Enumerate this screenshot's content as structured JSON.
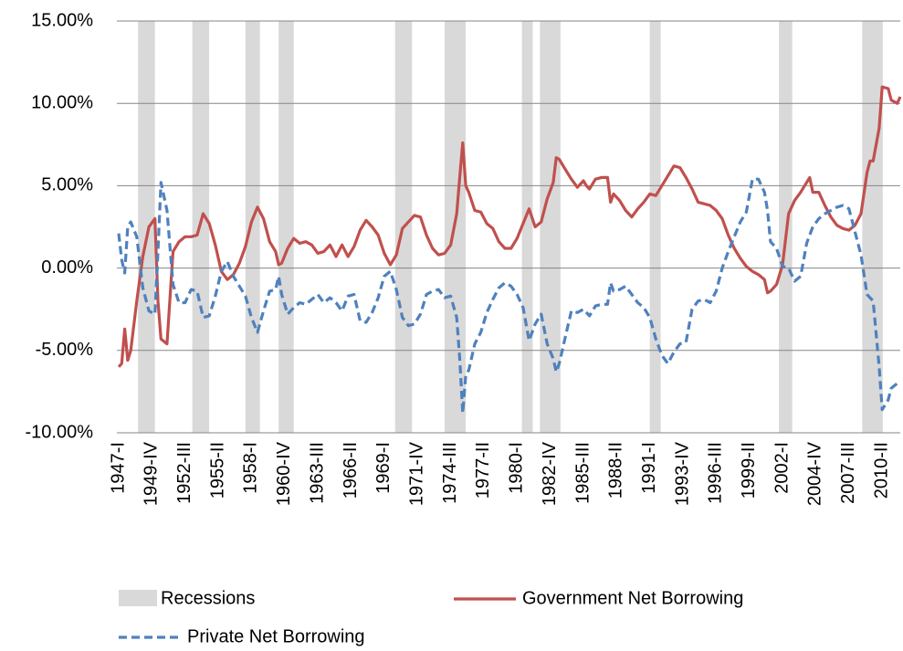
{
  "chart_data": {
    "type": "line",
    "x": [
      1947,
      1947.25,
      1947.5,
      1947.75,
      1948,
      1948.5,
      1949,
      1949.5,
      1950,
      1950.25,
      1950.5,
      1951,
      1951.5,
      1952,
      1952.5,
      1953,
      1953.5,
      1954,
      1954.5,
      1955,
      1955.5,
      1956,
      1956.5,
      1957,
      1957.5,
      1958,
      1958.5,
      1959,
      1959.5,
      1960,
      1960.25,
      1960.5,
      1961,
      1961.5,
      1962,
      1962.5,
      1963,
      1963.5,
      1964,
      1964.5,
      1965,
      1965.5,
      1966,
      1966.5,
      1967,
      1967.5,
      1968,
      1968.5,
      1969,
      1969.5,
      1970,
      1970.5,
      1971,
      1971.5,
      1972,
      1972.5,
      1973,
      1973.5,
      1974,
      1974.5,
      1975,
      1975.25,
      1975.5,
      1975.75,
      1976,
      1976.5,
      1977,
      1977.5,
      1978,
      1978.5,
      1979,
      1979.5,
      1980,
      1980.5,
      1981,
      1981.5,
      1982,
      1982.5,
      1983,
      1983.25,
      1983.5,
      1984,
      1984.5,
      1985,
      1985.5,
      1985.75,
      1986,
      1986.5,
      1987,
      1987.5,
      1987.75,
      1988,
      1988.5,
      1989,
      1989.5,
      1990,
      1990.5,
      1991,
      1991.5,
      1992,
      1992.5,
      1993,
      1993.5,
      1994,
      1994.5,
      1995,
      1995.5,
      1996,
      1996.5,
      1997,
      1997.5,
      1998,
      1998.5,
      1999,
      1999.5,
      2000,
      2000.5,
      2000.75,
      2001,
      2001.5,
      2002,
      2002.5,
      2003,
      2003.5,
      2004,
      2004.25,
      2004.5,
      2005,
      2005.5,
      2006,
      2006.5,
      2007,
      2007.5,
      2008,
      2008.5,
      2009,
      2009.25,
      2009.5,
      2010,
      2010.25,
      2010.75,
      2011,
      2011.5,
      2011.75
    ],
    "series": [
      {
        "name": "Government Net Borrowing",
        "color": "#c0504d",
        "dashed": false,
        "values": [
          -6.0,
          -5.8,
          -3.7,
          -5.6,
          -5.0,
          -2.0,
          0.7,
          2.5,
          3.0,
          -2.0,
          -4.3,
          -4.6,
          1.0,
          1.6,
          1.9,
          1.9,
          2.0,
          3.3,
          2.7,
          1.4,
          -0.2,
          -0.7,
          -0.4,
          0.3,
          1.3,
          2.8,
          3.7,
          3.0,
          1.6,
          1.0,
          0.2,
          0.3,
          1.2,
          1.8,
          1.5,
          1.6,
          1.4,
          0.9,
          1.0,
          1.4,
          0.7,
          1.4,
          0.7,
          1.3,
          2.3,
          2.9,
          2.5,
          2.0,
          0.9,
          0.2,
          0.8,
          2.4,
          2.8,
          3.2,
          3.1,
          2.0,
          1.2,
          0.8,
          0.9,
          1.4,
          3.3,
          5.5,
          7.6,
          5.0,
          4.6,
          3.5,
          3.4,
          2.7,
          2.4,
          1.6,
          1.2,
          1.2,
          1.8,
          2.7,
          3.6,
          2.5,
          2.8,
          4.2,
          5.2,
          6.7,
          6.6,
          6.0,
          5.4,
          4.9,
          5.3,
          5.0,
          4.8,
          5.4,
          5.5,
          5.5,
          4.0,
          4.5,
          4.1,
          3.5,
          3.1,
          3.6,
          4.0,
          4.5,
          4.4,
          5.0,
          5.6,
          6.2,
          6.1,
          5.5,
          4.8,
          4.0,
          3.9,
          3.8,
          3.5,
          3.0,
          2.0,
          1.2,
          0.6,
          0.1,
          -0.2,
          -0.4,
          -0.7,
          -1.5,
          -1.4,
          -1.0,
          0.2,
          3.3,
          4.1,
          4.6,
          5.2,
          5.5,
          4.6,
          4.6,
          3.8,
          3.1,
          2.6,
          2.4,
          2.3,
          2.6,
          3.3,
          5.8,
          6.5,
          6.5,
          8.5,
          11.0,
          10.9,
          10.2,
          10.0,
          10.4
        ]
      },
      {
        "name": "Private Net Borrowing",
        "color": "#4f81bd",
        "dashed": true,
        "values": [
          2.1,
          0.5,
          -0.3,
          2.5,
          2.8,
          1.9,
          -1.2,
          -2.6,
          -2.8,
          1.0,
          5.2,
          3.5,
          -1.0,
          -2.1,
          -2.1,
          -1.3,
          -1.4,
          -3.0,
          -2.9,
          -1.7,
          -0.2,
          0.4,
          -0.5,
          -1.1,
          -1.7,
          -3.0,
          -3.9,
          -2.6,
          -1.4,
          -1.3,
          -0.5,
          -1.6,
          -2.8,
          -2.4,
          -2.1,
          -2.2,
          -1.9,
          -1.6,
          -2.1,
          -1.8,
          -2.1,
          -2.6,
          -1.7,
          -1.6,
          -3.2,
          -3.3,
          -2.7,
          -1.8,
          -0.5,
          -0.2,
          -1.3,
          -3.0,
          -3.5,
          -3.4,
          -2.8,
          -1.6,
          -1.4,
          -1.3,
          -1.8,
          -1.7,
          -3.0,
          -5.5,
          -8.8,
          -6.5,
          -6.2,
          -4.6,
          -3.9,
          -2.7,
          -1.9,
          -1.2,
          -0.9,
          -1.1,
          -1.6,
          -2.4,
          -4.4,
          -3.4,
          -2.8,
          -4.6,
          -5.5,
          -6.3,
          -5.8,
          -4.2,
          -2.6,
          -2.7,
          -2.5,
          -2.7,
          -2.9,
          -2.3,
          -2.2,
          -2.2,
          -0.9,
          -1.4,
          -1.3,
          -1.1,
          -1.6,
          -2.1,
          -2.4,
          -3.0,
          -4.3,
          -5.3,
          -5.8,
          -5.1,
          -4.6,
          -4.5,
          -2.5,
          -2.0,
          -1.9,
          -2.1,
          -1.4,
          0.0,
          1.0,
          1.9,
          2.8,
          3.4,
          5.4,
          5.4,
          4.6,
          3.5,
          1.6,
          1.2,
          0.1,
          0.0,
          -0.8,
          -0.5,
          1.5,
          2.0,
          2.5,
          3.0,
          3.3,
          3.5,
          3.7,
          3.8,
          3.6,
          2.2,
          0.8,
          -1.6,
          -1.8,
          -2.0,
          -6.0,
          -8.6,
          -8.0,
          -7.3,
          -7.0,
          -6.9
        ]
      }
    ],
    "recessions": {
      "name": "Recessions",
      "color": "#d9d9d9",
      "ranges": [
        [
          1948.6,
          1950.0
        ],
        [
          1953.1,
          1954.5
        ],
        [
          1957.5,
          1958.7
        ],
        [
          1960.25,
          1961.5
        ],
        [
          1969.9,
          1971.3
        ],
        [
          1974.0,
          1975.75
        ],
        [
          1980.4,
          1981.3
        ],
        [
          1981.9,
          1983.6
        ],
        [
          1991.0,
          1991.9
        ],
        [
          2001.7,
          2002.8
        ],
        [
          2008.6,
          2010.3
        ]
      ]
    },
    "xlim": [
      1947,
      2011.75
    ],
    "xticks": [
      {
        "value": 1947,
        "label": "1947-I"
      },
      {
        "value": 1949.75,
        "label": "1949-IV"
      },
      {
        "value": 1952.5,
        "label": "1952-III"
      },
      {
        "value": 1955.25,
        "label": "1955-II"
      },
      {
        "value": 1958,
        "label": "1958-I"
      },
      {
        "value": 1960.75,
        "label": "1960-IV"
      },
      {
        "value": 1963.5,
        "label": "1963-III"
      },
      {
        "value": 1966.25,
        "label": "1966-II"
      },
      {
        "value": 1969,
        "label": "1969-I"
      },
      {
        "value": 1971.75,
        "label": "1971-IV"
      },
      {
        "value": 1974.5,
        "label": "1974-III"
      },
      {
        "value": 1977.25,
        "label": "1977-II"
      },
      {
        "value": 1980,
        "label": "1980-I"
      },
      {
        "value": 1982.75,
        "label": "1982-IV"
      },
      {
        "value": 1985.5,
        "label": "1985-III"
      },
      {
        "value": 1988.25,
        "label": "1988-II"
      },
      {
        "value": 1991,
        "label": "1991-I"
      },
      {
        "value": 1993.75,
        "label": "1993-IV"
      },
      {
        "value": 1996.5,
        "label": "1996-III"
      },
      {
        "value": 1999.25,
        "label": "1999-II"
      },
      {
        "value": 2002,
        "label": "2002-I"
      },
      {
        "value": 2004.75,
        "label": "2004-IV"
      },
      {
        "value": 2007.5,
        "label": "2007-III"
      },
      {
        "value": 2010.25,
        "label": "2010-II"
      }
    ],
    "ylim": [
      -10,
      15
    ],
    "yticks": [
      {
        "value": -10,
        "label": "-10.00%"
      },
      {
        "value": -5,
        "label": "-5.00%"
      },
      {
        "value": 0,
        "label": "0.00%"
      },
      {
        "value": 5,
        "label": "5.00%"
      },
      {
        "value": 10,
        "label": "10.00%"
      },
      {
        "value": 15,
        "label": "15.00%"
      }
    ],
    "grid": true
  }
}
